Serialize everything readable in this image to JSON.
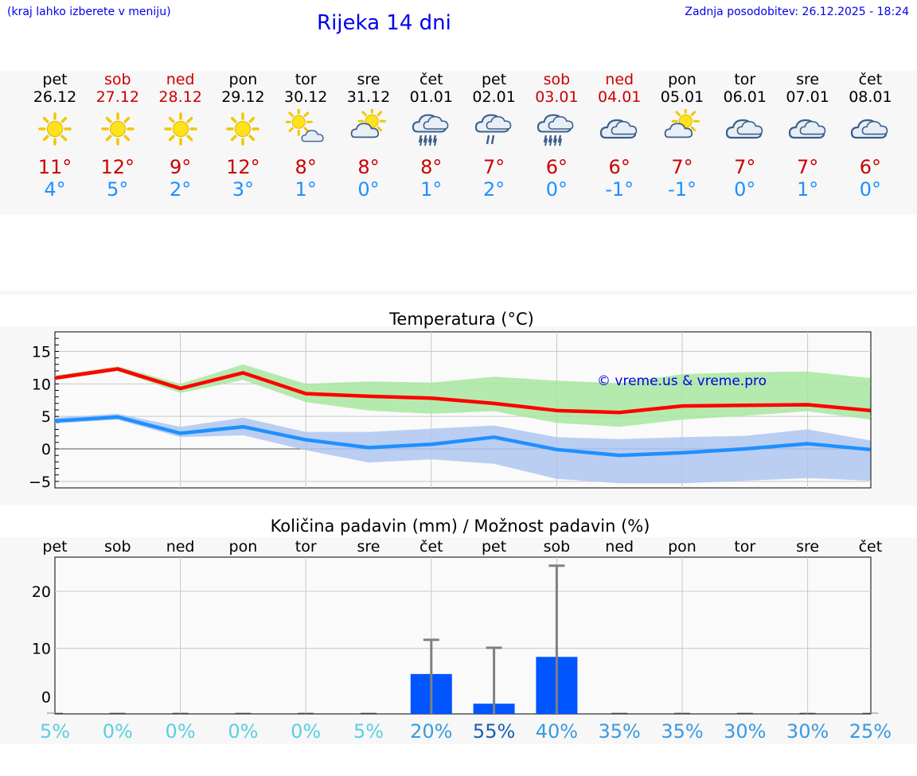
{
  "header": {
    "hint": "(kraj lahko izberete v meniju)",
    "title": "Rijeka 14 dni",
    "updated": "Zadnja posodobitev: 26.12.2025 - 18:24"
  },
  "colors": {
    "high": "#cc0000",
    "low": "#1e90ff",
    "high_line": "#ff0000",
    "low_line": "#1e90ff",
    "high_band": "#a8e6a0",
    "low_band": "#aec6f0",
    "bar": "#0055ff",
    "err": "#808080"
  },
  "days": [
    {
      "name": "pet",
      "date": "26.12",
      "icon": "sun-icon",
      "high": "11°",
      "low": "4°",
      "weekend": false
    },
    {
      "name": "sob",
      "date": "27.12",
      "icon": "sun-icon",
      "high": "12°",
      "low": "5°",
      "weekend": true
    },
    {
      "name": "ned",
      "date": "28.12",
      "icon": "sun-icon",
      "high": "9°",
      "low": "2°",
      "weekend": true
    },
    {
      "name": "pon",
      "date": "29.12",
      "icon": "sun-icon",
      "high": "12°",
      "low": "3°",
      "weekend": false
    },
    {
      "name": "tor",
      "date": "30.12",
      "icon": "sun-small-cloud-icon",
      "high": "8°",
      "low": "1°",
      "weekend": false
    },
    {
      "name": "sre",
      "date": "31.12",
      "icon": "partly-cloudy-icon",
      "high": "8°",
      "low": "0°",
      "weekend": false
    },
    {
      "name": "čet",
      "date": "01.01",
      "icon": "rain-icon",
      "high": "8°",
      "low": "1°",
      "weekend": false
    },
    {
      "name": "pet",
      "date": "02.01",
      "icon": "light-rain-icon",
      "high": "7°",
      "low": "2°",
      "weekend": false
    },
    {
      "name": "sob",
      "date": "03.01",
      "icon": "rain-icon",
      "high": "6°",
      "low": "0°",
      "weekend": true
    },
    {
      "name": "ned",
      "date": "04.01",
      "icon": "cloud-icon",
      "high": "6°",
      "low": "-1°",
      "weekend": true
    },
    {
      "name": "pon",
      "date": "05.01",
      "icon": "partly-cloudy-icon",
      "high": "7°",
      "low": "-1°",
      "weekend": false
    },
    {
      "name": "tor",
      "date": "06.01",
      "icon": "cloud-icon",
      "high": "7°",
      "low": "0°",
      "weekend": false
    },
    {
      "name": "sre",
      "date": "07.01",
      "icon": "cloud-icon",
      "high": "7°",
      "low": "1°",
      "weekend": false
    },
    {
      "name": "čet",
      "date": "08.01",
      "icon": "cloud-icon",
      "high": "6°",
      "low": "0°",
      "weekend": false
    }
  ],
  "chart_data": [
    {
      "type": "line",
      "title": "Temperatura (°C)",
      "watermark": "© vreme.us & vreme.pro",
      "ylim": [
        -6,
        18
      ],
      "yticks": [
        -5,
        0,
        5,
        10,
        15
      ],
      "ytick_labels": [
        "−5",
        "0",
        "5",
        "10",
        "15"
      ],
      "x": [
        0,
        1,
        2,
        3,
        4,
        5,
        6,
        7,
        8,
        9,
        10,
        11,
        12,
        13
      ],
      "series": [
        {
          "name": "max",
          "values": [
            10.9,
            12.3,
            9.3,
            11.7,
            8.5,
            8.1,
            7.8,
            7.0,
            5.9,
            5.6,
            6.6,
            6.7,
            6.8,
            5.9
          ],
          "band_high": [
            11.3,
            12.7,
            10.0,
            13.0,
            10.0,
            10.4,
            10.2,
            11.1,
            10.5,
            10.1,
            11.5,
            11.8,
            11.9,
            10.9
          ],
          "band_low": [
            10.6,
            12.0,
            8.6,
            10.6,
            7.2,
            5.9,
            5.4,
            5.8,
            4.0,
            3.4,
            4.5,
            5.1,
            5.8,
            4.5
          ]
        },
        {
          "name": "min",
          "values": [
            4.3,
            4.9,
            2.4,
            3.4,
            1.4,
            0.2,
            0.7,
            1.8,
            -0.1,
            -1.0,
            -0.6,
            0.0,
            0.8,
            -0.1
          ],
          "band_high": [
            4.8,
            5.4,
            3.4,
            4.8,
            2.6,
            2.6,
            3.1,
            3.6,
            1.8,
            1.5,
            1.8,
            2.0,
            3.0,
            1.3
          ],
          "band_low": [
            3.9,
            4.5,
            1.8,
            2.1,
            -0.2,
            -2.1,
            -1.6,
            -2.3,
            -4.6,
            -5.3,
            -5.3,
            -4.9,
            -4.5,
            -4.9
          ]
        }
      ]
    },
    {
      "type": "bar",
      "title": "Količina padavin (mm) / Možnost padavin (%)",
      "categories": [
        "pet",
        "sob",
        "ned",
        "pon",
        "tor",
        "sre",
        "čet",
        "pet",
        "sob",
        "ned",
        "pon",
        "tor",
        "sre",
        "čet"
      ],
      "ylim": [
        -1.5,
        26
      ],
      "yticks": [
        0,
        10,
        20
      ],
      "ytick_labels": [
        "0",
        "10",
        "20"
      ],
      "values": [
        0,
        0,
        0,
        0,
        0,
        0,
        5.5,
        0.3,
        8.5,
        0,
        0,
        0,
        0,
        0
      ],
      "error_high": [
        0,
        0,
        0,
        0,
        0,
        0,
        11.5,
        10.1,
        24.5,
        0,
        0,
        0,
        0,
        0
      ],
      "probability": [
        "5%",
        "0%",
        "0%",
        "0%",
        "0%",
        "5%",
        "20%",
        "55%",
        "40%",
        "35%",
        "35%",
        "30%",
        "30%",
        "25%"
      ],
      "probability_colors": [
        "#5bcfe0",
        "#5bcfe0",
        "#5bcfe0",
        "#5bcfe0",
        "#5bcfe0",
        "#5bcfe0",
        "#3a9ae0",
        "#1a5fb0",
        "#3a9ae0",
        "#3a9ae0",
        "#3a9ae0",
        "#3a9ae0",
        "#3a9ae0",
        "#3a9ae0"
      ]
    }
  ]
}
